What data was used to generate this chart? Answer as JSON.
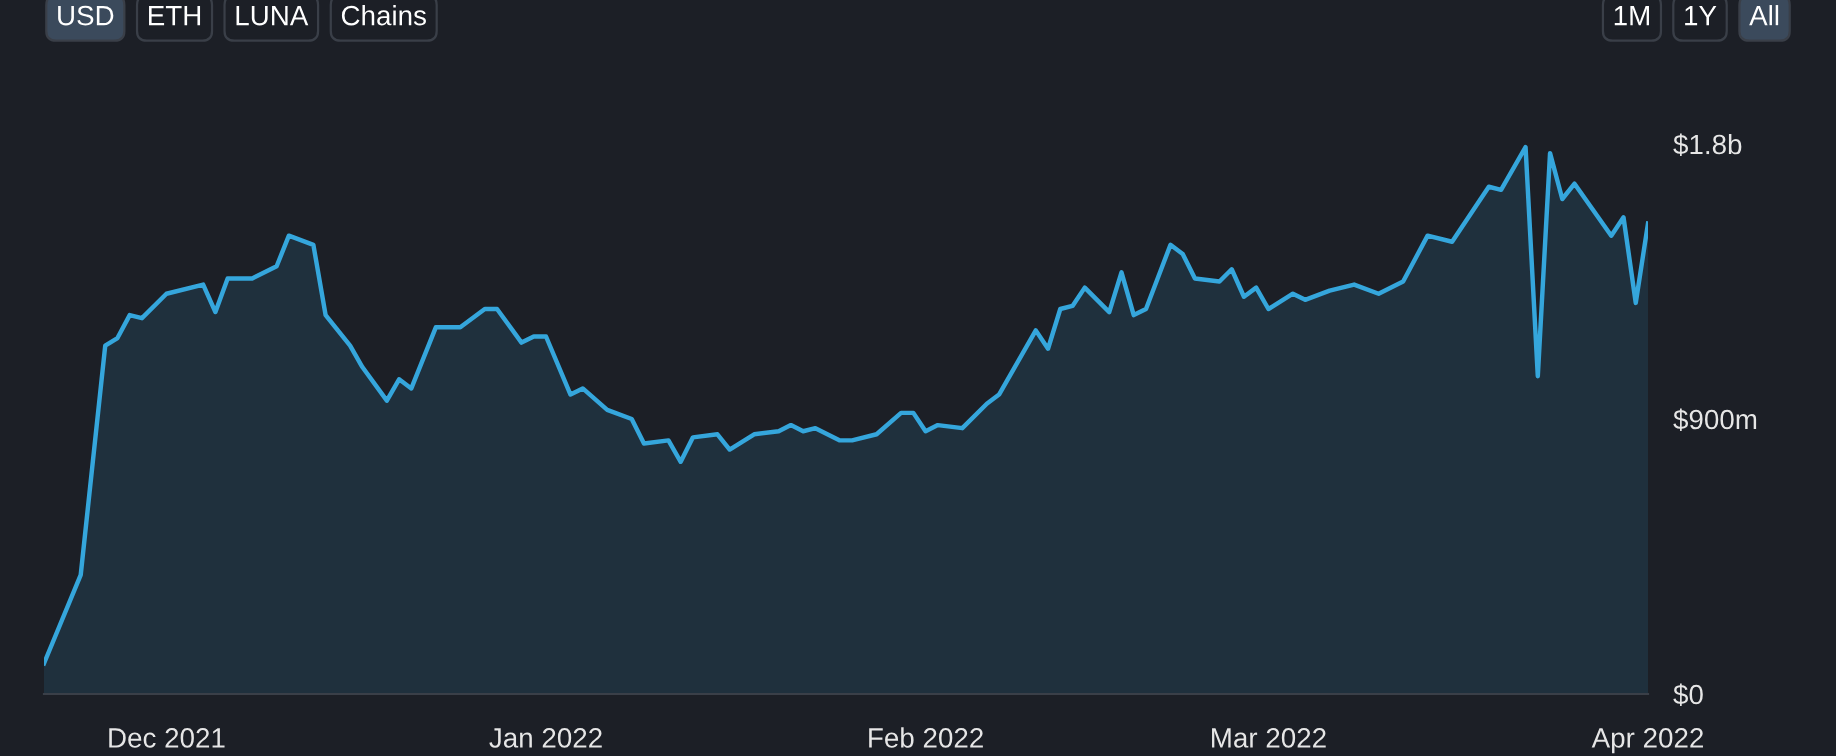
{
  "chart_data": {
    "type": "area",
    "color": "#35a6dc",
    "x": [
      "2021-11-21",
      "2021-11-24",
      "2021-11-26",
      "2021-11-27",
      "2021-11-28",
      "2021-11-29",
      "2021-12-01",
      "2021-12-04",
      "2021-12-05",
      "2021-12-06",
      "2021-12-08",
      "2021-12-10",
      "2021-12-11",
      "2021-12-13",
      "2021-12-14",
      "2021-12-16",
      "2021-12-17",
      "2021-12-19",
      "2021-12-20",
      "2021-12-21",
      "2021-12-23",
      "2021-12-25",
      "2021-12-27",
      "2021-12-28",
      "2021-12-30",
      "2021-12-31",
      "2022-01-01",
      "2022-01-03",
      "2022-01-04",
      "2022-01-06",
      "2022-01-08",
      "2022-01-09",
      "2022-01-11",
      "2022-01-12",
      "2022-01-13",
      "2022-01-15",
      "2022-01-16",
      "2022-01-18",
      "2022-01-20",
      "2022-01-21",
      "2022-01-22",
      "2022-01-23",
      "2022-01-25",
      "2022-01-26",
      "2022-01-28",
      "2022-01-30",
      "2022-01-31",
      "2022-02-01",
      "2022-02-02",
      "2022-02-04",
      "2022-02-06",
      "2022-02-07",
      "2022-02-10",
      "2022-02-11",
      "2022-02-12",
      "2022-02-13",
      "2022-02-14",
      "2022-02-16",
      "2022-02-17",
      "2022-02-18",
      "2022-02-19",
      "2022-02-21",
      "2022-02-22",
      "2022-02-23",
      "2022-02-25",
      "2022-02-26",
      "2022-02-27",
      "2022-02-28",
      "2022-03-01",
      "2022-03-03",
      "2022-03-04",
      "2022-03-06",
      "2022-03-08",
      "2022-03-10",
      "2022-03-12",
      "2022-03-14",
      "2022-03-16",
      "2022-03-19",
      "2022-03-20",
      "2022-03-22",
      "2022-03-23",
      "2022-03-24",
      "2022-03-25",
      "2022-03-26",
      "2022-03-29",
      "2022-03-30",
      "2022-03-31",
      "2022-04-01"
    ],
    "values": [
      100000000,
      390000000,
      1140000000,
      1165000000,
      1240000000,
      1230000000,
      1310000000,
      1340000000,
      1250000000,
      1360000000,
      1360000000,
      1400000000,
      1500000000,
      1470000000,
      1240000000,
      1140000000,
      1070000000,
      960000000,
      1030000000,
      1000000000,
      1200000000,
      1200000000,
      1260000000,
      1260000000,
      1150000000,
      1170000000,
      1170000000,
      980000000,
      1000000000,
      930000000,
      900000000,
      820000000,
      830000000,
      760000000,
      840000000,
      850000000,
      800000000,
      850000000,
      860000000,
      880000000,
      860000000,
      870000000,
      830000000,
      830000000,
      850000000,
      920000000,
      920000000,
      860000000,
      880000000,
      870000000,
      950000000,
      980000000,
      1190000000,
      1130000000,
      1260000000,
      1270000000,
      1330000000,
      1250000000,
      1380000000,
      1240000000,
      1260000000,
      1470000000,
      1440000000,
      1360000000,
      1350000000,
      1390000000,
      1300000000,
      1330000000,
      1260000000,
      1310000000,
      1290000000,
      1320000000,
      1340000000,
      1310000000,
      1350000000,
      1500000000,
      1480000000,
      1660000000,
      1650000000,
      1790000000,
      1040000000,
      1770000000,
      1620000000,
      1670000000,
      1500000000,
      1560000000,
      1280000000,
      1540000000
    ],
    "xlim": [
      "2021-11-21",
      "2022-04-01"
    ],
    "xticks": [
      {
        "value": "2021-12-01",
        "label": "Dec 2021"
      },
      {
        "value": "2022-01-01",
        "label": "Jan 2022"
      },
      {
        "value": "2022-02-01",
        "label": "Feb 2022"
      },
      {
        "value": "2022-03-01",
        "label": "Mar 2022"
      },
      {
        "value": "2022-04-01",
        "label": "Apr 2022"
      }
    ],
    "ylim": [
      0,
      1800000000
    ],
    "yticks": [
      {
        "value": 0,
        "label": "$0"
      },
      {
        "value": 900000000,
        "label": "$900m"
      },
      {
        "value": 1800000000,
        "label": "$1.8b"
      }
    ],
    "annotations": [
      "USD",
      "ETH",
      "LUNA",
      "Chains",
      "1M",
      "1Y",
      "All"
    ],
    "grid": false,
    "legend": false
  }
}
